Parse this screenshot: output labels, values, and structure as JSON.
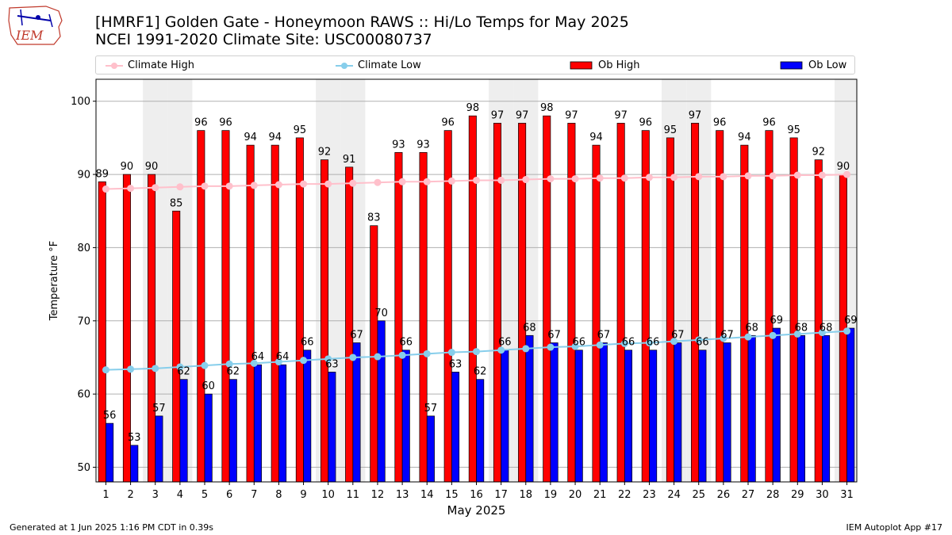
{
  "logo": {
    "text": "IEM"
  },
  "title": {
    "line1": "[HMRF1] Golden Gate - Honeymoon RAWS :: Hi/Lo Temps for May 2025",
    "line2": "NCEI 1991-2020 Climate Site: USC00080737"
  },
  "legend": {
    "climate_high": "Climate High",
    "climate_low": "Climate Low",
    "ob_high": "Ob High",
    "ob_low": "Ob Low"
  },
  "colors": {
    "ob_high": "#ff0000",
    "ob_low": "#0000ff",
    "climate_high": "#ffc0cb",
    "climate_low": "#87ceeb",
    "weekend_band": "#eeeeee"
  },
  "footer": {
    "generated": "Generated at 1 Jun 2025 1:16 PM CDT in 0.39s",
    "app": "IEM Autoplot App #17"
  },
  "chart_data": {
    "type": "bar",
    "xlabel": "May 2025",
    "ylabel": "Temperature °F",
    "ylim": [
      48,
      103
    ],
    "yticks": [
      50,
      60,
      70,
      80,
      90,
      100
    ],
    "grid": "horizontal",
    "categories": [
      "1",
      "2",
      "3",
      "4",
      "5",
      "6",
      "7",
      "8",
      "9",
      "10",
      "11",
      "12",
      "13",
      "14",
      "15",
      "16",
      "17",
      "18",
      "19",
      "20",
      "21",
      "22",
      "23",
      "24",
      "25",
      "26",
      "27",
      "28",
      "29",
      "30",
      "31"
    ],
    "weekend_days": [
      3,
      4,
      10,
      11,
      17,
      18,
      24,
      25,
      31
    ],
    "series": [
      {
        "name": "Ob High",
        "values": [
          89,
          90,
          90,
          85,
          96,
          96,
          94,
          94,
          95,
          92,
          91,
          83,
          93,
          93,
          96,
          98,
          97,
          97,
          98,
          97,
          94,
          97,
          96,
          95,
          97,
          96,
          94,
          96,
          95,
          92,
          90
        ]
      },
      {
        "name": "Ob Low",
        "values": [
          56,
          53,
          57,
          62,
          60,
          62,
          64,
          64,
          66,
          63,
          67,
          70,
          66,
          57,
          63,
          62,
          66,
          68,
          67,
          66,
          67,
          66,
          66,
          67,
          66,
          67,
          68,
          69,
          68,
          68,
          69
        ]
      },
      {
        "name": "Climate High",
        "values": [
          88.0,
          88.1,
          88.2,
          88.3,
          88.4,
          88.4,
          88.5,
          88.6,
          88.7,
          88.7,
          88.8,
          88.9,
          89.0,
          89.0,
          89.1,
          89.2,
          89.2,
          89.3,
          89.4,
          89.4,
          89.5,
          89.5,
          89.6,
          89.6,
          89.7,
          89.7,
          89.8,
          89.8,
          89.9,
          89.9,
          90.0
        ]
      },
      {
        "name": "Climate Low",
        "values": [
          63.3,
          63.4,
          63.5,
          63.7,
          63.9,
          64.1,
          64.2,
          64.4,
          64.6,
          64.8,
          65.0,
          65.1,
          65.3,
          65.5,
          65.7,
          65.8,
          66.0,
          66.2,
          66.4,
          66.5,
          66.7,
          66.9,
          67.0,
          67.2,
          67.4,
          67.6,
          67.8,
          68.0,
          68.2,
          68.4,
          68.6
        ]
      }
    ]
  }
}
